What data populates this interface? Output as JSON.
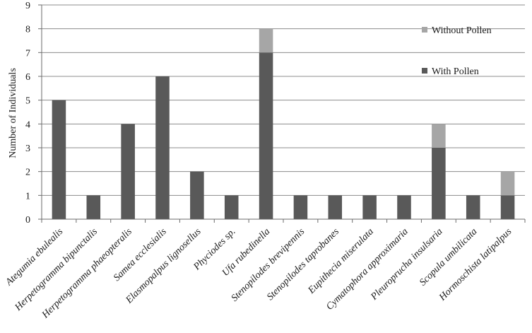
{
  "chart_data": {
    "type": "bar",
    "stacked": true,
    "title": "",
    "xlabel": "",
    "ylabel": "Number of Individuals",
    "ylim": [
      0,
      9
    ],
    "yticks": [
      0,
      1,
      2,
      3,
      4,
      5,
      6,
      7,
      8,
      9
    ],
    "grid": "horizontal",
    "legend_position": "top-right",
    "categories": [
      "Ategumia ebulealis",
      "Herpetogramma bipunctalis",
      "Herpetogramma phaeopteralis",
      "Samea ecclesialis",
      "Elasmopalpus lignosellus",
      "Phyciodes sp.",
      "Ufa rubedinella",
      "Stenopilodes brevipennis",
      "Stenopilodes taprobanes",
      "Eupithecia miserulata",
      "Cymatophora approximaria",
      "Pleuroprucha insulsaria",
      "Scopula umbilicata",
      "Hormoschista latipalpus"
    ],
    "series": [
      {
        "name": "With Pollen",
        "color": "#595959",
        "values": [
          5,
          1,
          4,
          6,
          2,
          1,
          7,
          1,
          1,
          1,
          1,
          3,
          1,
          1
        ]
      },
      {
        "name": "Without Pollen",
        "color": "#a6a6a6",
        "values": [
          0,
          0,
          0,
          0,
          0,
          0,
          1,
          0,
          0,
          0,
          0,
          1,
          0,
          1
        ]
      }
    ],
    "legend": [
      {
        "name": "Without Pollen",
        "color": "#a6a6a6"
      },
      {
        "name": "With Pollen",
        "color": "#595959"
      }
    ]
  }
}
